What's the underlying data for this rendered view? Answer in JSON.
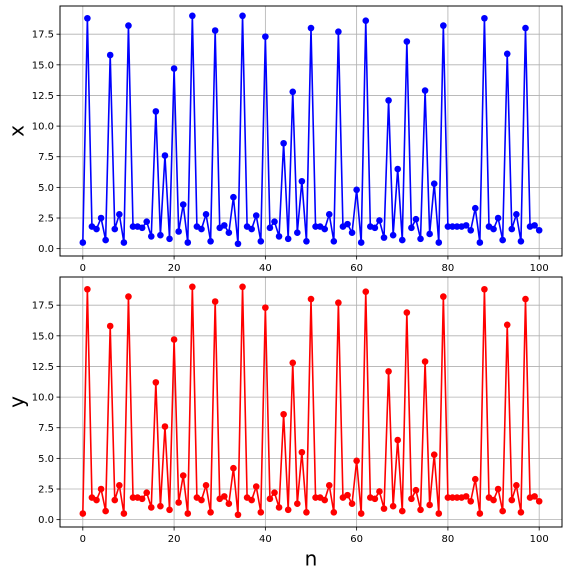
{
  "chart_data": [
    {
      "type": "line",
      "ylabel": "x",
      "xlabel": "",
      "xlim": [
        -5,
        105
      ],
      "ylim": [
        -0.6,
        19.8
      ],
      "xticks": [
        0,
        20,
        40,
        60,
        80,
        100
      ],
      "yticks": [
        0.0,
        2.5,
        5.0,
        7.5,
        10.0,
        12.5,
        15.0,
        17.5
      ],
      "grid": true,
      "color": "#0000ff",
      "marker": "circle",
      "series": [
        {
          "x": [
            0,
            1,
            2,
            3,
            4,
            5,
            6,
            7,
            8,
            9,
            10,
            11,
            12,
            13,
            14,
            15,
            16,
            17,
            18,
            19,
            20,
            21,
            22,
            23,
            24,
            25,
            26,
            27,
            28,
            29,
            30,
            31,
            32,
            33,
            34,
            35,
            36,
            37,
            38,
            39,
            40,
            41,
            42,
            43,
            44,
            45,
            46,
            47,
            48,
            49,
            50,
            51,
            52,
            53,
            54,
            55,
            56,
            57,
            58,
            59,
            60,
            61,
            62,
            63,
            64,
            65,
            66,
            67,
            68,
            69,
            70,
            71,
            72,
            73,
            74,
            75,
            76,
            77,
            78,
            79,
            80,
            81,
            82,
            83,
            84,
            85,
            86,
            87,
            88,
            89,
            90,
            91,
            92,
            93,
            94,
            95,
            96,
            97,
            98,
            99,
            100
          ],
          "values": [
            0.5,
            18.8,
            1.8,
            1.6,
            2.5,
            0.7,
            15.8,
            1.6,
            2.8,
            0.5,
            18.2,
            1.8,
            1.8,
            1.7,
            2.2,
            1.0,
            11.2,
            1.1,
            7.6,
            0.8,
            14.7,
            1.4,
            3.6,
            0.5,
            19.0,
            1.8,
            1.6,
            2.8,
            0.6,
            17.8,
            1.7,
            1.9,
            1.3,
            4.2,
            0.4,
            19.0,
            1.8,
            1.6,
            2.7,
            0.6,
            17.3,
            1.7,
            2.2,
            1.0,
            8.6,
            0.8,
            12.8,
            1.3,
            5.5,
            0.6,
            18.0,
            1.8,
            1.8,
            1.6,
            2.8,
            0.6,
            17.7,
            1.8,
            2.0,
            1.3,
            4.8,
            0.5,
            18.6,
            1.8,
            1.7,
            2.3,
            0.9,
            12.1,
            1.1,
            6.5,
            0.7,
            16.9,
            1.7,
            2.4,
            0.8,
            12.9,
            1.2,
            5.3,
            0.5,
            18.2,
            1.8,
            1.8,
            1.8,
            1.8,
            1.9,
            1.5,
            3.3,
            0.5,
            18.8,
            1.8,
            1.6,
            2.5,
            0.7,
            15.9,
            1.6,
            2.8,
            0.6,
            18.0,
            1.8,
            1.9,
            1.5
          ]
        }
      ]
    },
    {
      "type": "line",
      "ylabel": "y",
      "xlabel": "n",
      "xlim": [
        -5,
        105
      ],
      "ylim": [
        -0.6,
        19.8
      ],
      "xticks": [
        0,
        20,
        40,
        60,
        80,
        100
      ],
      "yticks": [
        0.0,
        2.5,
        5.0,
        7.5,
        10.0,
        12.5,
        15.0,
        17.5
      ],
      "grid": true,
      "color": "#ff0000",
      "marker": "circle",
      "series": [
        {
          "x": [
            0,
            1,
            2,
            3,
            4,
            5,
            6,
            7,
            8,
            9,
            10,
            11,
            12,
            13,
            14,
            15,
            16,
            17,
            18,
            19,
            20,
            21,
            22,
            23,
            24,
            25,
            26,
            27,
            28,
            29,
            30,
            31,
            32,
            33,
            34,
            35,
            36,
            37,
            38,
            39,
            40,
            41,
            42,
            43,
            44,
            45,
            46,
            47,
            48,
            49,
            50,
            51,
            52,
            53,
            54,
            55,
            56,
            57,
            58,
            59,
            60,
            61,
            62,
            63,
            64,
            65,
            66,
            67,
            68,
            69,
            70,
            71,
            72,
            73,
            74,
            75,
            76,
            77,
            78,
            79,
            80,
            81,
            82,
            83,
            84,
            85,
            86,
            87,
            88,
            89,
            90,
            91,
            92,
            93,
            94,
            95,
            96,
            97,
            98,
            99,
            100
          ],
          "values": [
            0.5,
            18.8,
            1.8,
            1.6,
            2.5,
            0.7,
            15.8,
            1.6,
            2.8,
            0.5,
            18.2,
            1.8,
            1.8,
            1.7,
            2.2,
            1.0,
            11.2,
            1.1,
            7.6,
            0.8,
            14.7,
            1.4,
            3.6,
            0.5,
            19.0,
            1.8,
            1.6,
            2.8,
            0.6,
            17.8,
            1.7,
            1.9,
            1.3,
            4.2,
            0.4,
            19.0,
            1.8,
            1.6,
            2.7,
            0.6,
            17.3,
            1.7,
            2.2,
            1.0,
            8.6,
            0.8,
            12.8,
            1.3,
            5.5,
            0.6,
            18.0,
            1.8,
            1.8,
            1.6,
            2.8,
            0.6,
            17.7,
            1.8,
            2.0,
            1.3,
            4.8,
            0.5,
            18.6,
            1.8,
            1.7,
            2.3,
            0.9,
            12.1,
            1.1,
            6.5,
            0.7,
            16.9,
            1.7,
            2.4,
            0.8,
            12.9,
            1.2,
            5.3,
            0.5,
            18.2,
            1.8,
            1.8,
            1.8,
            1.8,
            1.9,
            1.5,
            3.3,
            0.5,
            18.8,
            1.8,
            1.6,
            2.5,
            0.7,
            15.9,
            1.6,
            2.8,
            0.6,
            18.0,
            1.8,
            1.9,
            1.5
          ]
        }
      ]
    }
  ]
}
